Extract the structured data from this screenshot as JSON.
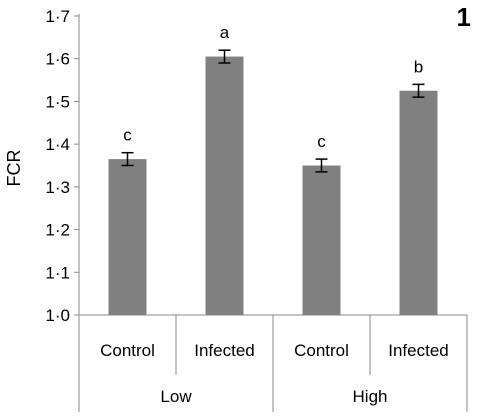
{
  "panel_label": "1",
  "chart_data": {
    "type": "bar",
    "title": "",
    "ylabel": "FCR",
    "xlabel": "",
    "ylim": [
      1.0,
      1.7
    ],
    "yticks": [
      "1·0",
      "1·1",
      "1·2",
      "1·3",
      "1·4",
      "1·5",
      "1·6",
      "1·7"
    ],
    "grid": false,
    "bar_color": "#808080",
    "categories": [
      "Control",
      "Infected",
      "Control",
      "Infected"
    ],
    "groups": [
      {
        "label": "Low",
        "categories": [
          "Control",
          "Infected"
        ]
      },
      {
        "label": "High",
        "categories": [
          "Control",
          "Infected"
        ]
      }
    ],
    "values": [
      1.365,
      1.605,
      1.35,
      1.525
    ],
    "errors": [
      0.015,
      0.015,
      0.015,
      0.015
    ],
    "significance_letters": [
      "c",
      "a",
      "c",
      "b"
    ]
  }
}
